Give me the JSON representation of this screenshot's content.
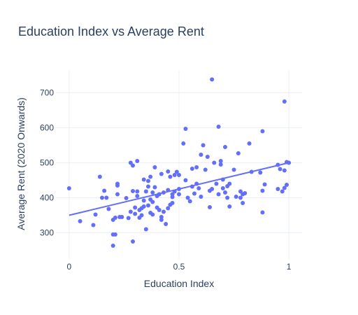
{
  "chart_data": {
    "type": "scatter",
    "title": "Education Index vs Average Rent",
    "xlabel": "Education Index",
    "ylabel": "Average Rent (2020 Onwards)",
    "xlim": [
      -0.06,
      1.06
    ],
    "ylim": [
      225,
      765
    ],
    "x_ticks": [
      0,
      0.5,
      1
    ],
    "x_tick_labels": [
      "0",
      "0.5",
      "1"
    ],
    "y_ticks": [
      300,
      400,
      500,
      600,
      700
    ],
    "y_tick_labels": [
      "300",
      "400",
      "500",
      "600",
      "700"
    ],
    "grid": true,
    "legend": "none",
    "colors": {
      "points": "#636efa",
      "trendline": "#636efa",
      "grid": "#ebf0f8",
      "text": "#2a3f5f"
    },
    "trendline": {
      "x": [
        0,
        1
      ],
      "y": [
        350,
        500
      ]
    },
    "points": [
      [
        0.0,
        427
      ],
      [
        0.05,
        333
      ],
      [
        0.11,
        322
      ],
      [
        0.12,
        352
      ],
      [
        0.14,
        460
      ],
      [
        0.15,
        400
      ],
      [
        0.16,
        420
      ],
      [
        0.17,
        400
      ],
      [
        0.18,
        368
      ],
      [
        0.2,
        337
      ],
      [
        0.2,
        263
      ],
      [
        0.2,
        295
      ],
      [
        0.21,
        295
      ],
      [
        0.21,
        343
      ],
      [
        0.22,
        435
      ],
      [
        0.22,
        440
      ],
      [
        0.22,
        410
      ],
      [
        0.23,
        345
      ],
      [
        0.24,
        345
      ],
      [
        0.26,
        399
      ],
      [
        0.27,
        342
      ],
      [
        0.28,
        360
      ],
      [
        0.28,
        500
      ],
      [
        0.29,
        492
      ],
      [
        0.29,
        275
      ],
      [
        0.29,
        419
      ],
      [
        0.3,
        372
      ],
      [
        0.3,
        354
      ],
      [
        0.31,
        505
      ],
      [
        0.31,
        418
      ],
      [
        0.31,
        405
      ],
      [
        0.32,
        365
      ],
      [
        0.32,
        343
      ],
      [
        0.33,
        370
      ],
      [
        0.33,
        350
      ],
      [
        0.34,
        375
      ],
      [
        0.34,
        392
      ],
      [
        0.34,
        452
      ],
      [
        0.35,
        310
      ],
      [
        0.35,
        418
      ],
      [
        0.36,
        432
      ],
      [
        0.36,
        448
      ],
      [
        0.36,
        378
      ],
      [
        0.37,
        395
      ],
      [
        0.37,
        357
      ],
      [
        0.37,
        460
      ],
      [
        0.38,
        415
      ],
      [
        0.38,
        352
      ],
      [
        0.38,
        388
      ],
      [
        0.39,
        487
      ],
      [
        0.39,
        430
      ],
      [
        0.4,
        405
      ],
      [
        0.4,
        372
      ],
      [
        0.41,
        410
      ],
      [
        0.41,
        365
      ],
      [
        0.42,
        468
      ],
      [
        0.42,
        345
      ],
      [
        0.42,
        337
      ],
      [
        0.43,
        415
      ],
      [
        0.43,
        360
      ],
      [
        0.44,
        325
      ],
      [
        0.45,
        475
      ],
      [
        0.45,
        422
      ],
      [
        0.45,
        370
      ],
      [
        0.46,
        380
      ],
      [
        0.46,
        460
      ],
      [
        0.47,
        410
      ],
      [
        0.47,
        385
      ],
      [
        0.47,
        402
      ],
      [
        0.48,
        465
      ],
      [
        0.48,
        418
      ],
      [
        0.49,
        474
      ],
      [
        0.5,
        425
      ],
      [
        0.5,
        465
      ],
      [
        0.5,
        410
      ],
      [
        0.52,
        555
      ],
      [
        0.53,
        450
      ],
      [
        0.53,
        597
      ],
      [
        0.54,
        400
      ],
      [
        0.55,
        390
      ],
      [
        0.56,
        432
      ],
      [
        0.56,
        483
      ],
      [
        0.57,
        412
      ],
      [
        0.58,
        487
      ],
      [
        0.58,
        440
      ],
      [
        0.59,
        427
      ],
      [
        0.6,
        403
      ],
      [
        0.6,
        523
      ],
      [
        0.61,
        550
      ],
      [
        0.62,
        480
      ],
      [
        0.63,
        517
      ],
      [
        0.64,
        373
      ],
      [
        0.64,
        420
      ],
      [
        0.65,
        738
      ],
      [
        0.65,
        425
      ],
      [
        0.66,
        500
      ],
      [
        0.67,
        440
      ],
      [
        0.68,
        410
      ],
      [
        0.68,
        603
      ],
      [
        0.69,
        505
      ],
      [
        0.69,
        495
      ],
      [
        0.7,
        452
      ],
      [
        0.7,
        427
      ],
      [
        0.71,
        545
      ],
      [
        0.71,
        415
      ],
      [
        0.72,
        433
      ],
      [
        0.72,
        400
      ],
      [
        0.73,
        440
      ],
      [
        0.73,
        375
      ],
      [
        0.75,
        480
      ],
      [
        0.76,
        403
      ],
      [
        0.77,
        527
      ],
      [
        0.78,
        418
      ],
      [
        0.78,
        400
      ],
      [
        0.79,
        385
      ],
      [
        0.79,
        410
      ],
      [
        0.8,
        413
      ],
      [
        0.82,
        555
      ],
      [
        0.83,
        474
      ],
      [
        0.87,
        472
      ],
      [
        0.88,
        590
      ],
      [
        0.88,
        420
      ],
      [
        0.88,
        358
      ],
      [
        0.89,
        438
      ],
      [
        0.95,
        494
      ],
      [
        0.95,
        425
      ],
      [
        0.96,
        482
      ],
      [
        0.97,
        418
      ],
      [
        0.98,
        428
      ],
      [
        0.98,
        675
      ],
      [
        0.98,
        478
      ],
      [
        0.99,
        502
      ],
      [
        0.99,
        437
      ],
      [
        1.0,
        500
      ]
    ]
  }
}
